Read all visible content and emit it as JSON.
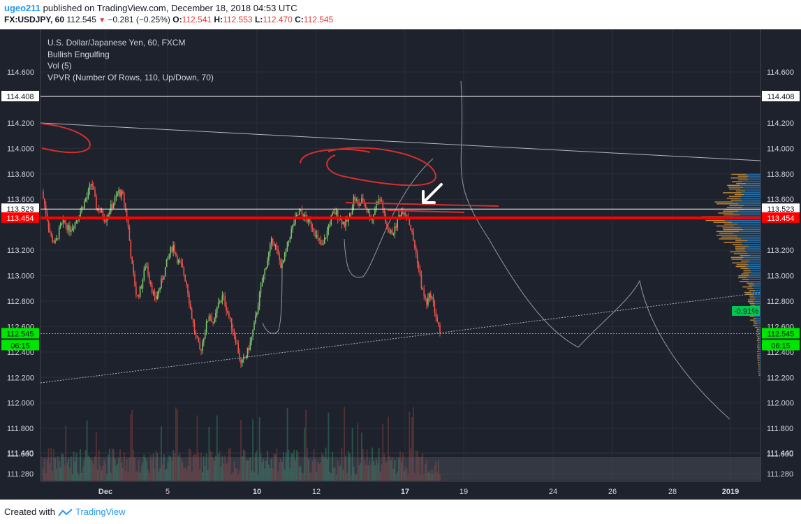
{
  "header": {
    "username": "ugeo211",
    "published_text": "published on TradingView.com, December 18, 2018 04:53 UTC"
  },
  "ohlc_line": {
    "symbol": "FX:USDJPY, 60",
    "last": "112.545",
    "change": "−0.281 (−0.25%)",
    "o_label": "O:",
    "o_value": "112.541",
    "h_label": "H:",
    "h_value": "112.553",
    "l_label": "L:",
    "l_value": "112.470",
    "c_label": "C:",
    "c_value": "112.545"
  },
  "legend": {
    "title": "U.S. Dollar/Japanese Yen, 60, FXCM",
    "line2": "Bullish Engulfing",
    "line3": "Vol (5)",
    "line4": "VPVR (Number Of Rows, 110, Up/Down, 70)"
  },
  "price_axis": {
    "ticks": [
      "114.600",
      "114.200",
      "114.000",
      "113.800",
      "113.600",
      "113.200",
      "113.000",
      "112.800",
      "112.600",
      "112.400",
      "112.200",
      "112.000",
      "111.800",
      "111.600",
      "111.440",
      "111.280"
    ],
    "labels": [
      {
        "text": "114.408",
        "price": 114.408,
        "kind": "white"
      },
      {
        "text": "113.523",
        "price": 113.523,
        "kind": "white"
      },
      {
        "text": "113.454",
        "price": 113.454,
        "kind": "red"
      },
      {
        "text": "112.545",
        "price": 112.545,
        "kind": "green"
      },
      {
        "text": "06:15",
        "price": 112.44,
        "kind": "green"
      }
    ],
    "change_badge": "-0.91%"
  },
  "time_axis": {
    "ticks": [
      {
        "label": "Dec",
        "bold": true
      },
      {
        "label": "5",
        "bold": false
      },
      {
        "label": "10",
        "bold": true
      },
      {
        "label": "12",
        "bold": false
      },
      {
        "label": "17",
        "bold": true
      },
      {
        "label": "19",
        "bold": false
      },
      {
        "label": "24",
        "bold": false
      },
      {
        "label": "26",
        "bold": false
      },
      {
        "label": "28",
        "bold": false
      },
      {
        "label": "2019",
        "bold": true
      }
    ]
  },
  "chart_data": {
    "type": "candlestick",
    "title": "U.S. Dollar/Japanese Yen, 60, FXCM",
    "ylim": [
      111.2,
      114.75
    ],
    "close_path": [
      113.66,
      113.48,
      113.3,
      113.25,
      113.38,
      113.42,
      113.36,
      113.4,
      113.46,
      113.55,
      113.62,
      113.74,
      113.54,
      113.5,
      113.44,
      113.52,
      113.58,
      113.66,
      113.62,
      113.4,
      113.05,
      112.82,
      112.92,
      113.1,
      112.95,
      112.8,
      112.9,
      113.02,
      113.16,
      113.24,
      113.12,
      113.06,
      112.94,
      112.7,
      112.52,
      112.4,
      112.56,
      112.7,
      112.62,
      112.78,
      112.84,
      112.72,
      112.6,
      112.48,
      112.3,
      112.36,
      112.46,
      112.62,
      112.82,
      113.0,
      113.15,
      113.3,
      113.18,
      113.06,
      113.2,
      113.34,
      113.44,
      113.5,
      113.46,
      113.42,
      113.38,
      113.28,
      113.22,
      113.34,
      113.46,
      113.5,
      113.44,
      113.4,
      113.46,
      113.62,
      113.55,
      113.6,
      113.5,
      113.44,
      113.58,
      113.6,
      113.4,
      113.33,
      113.36,
      113.48,
      113.52,
      113.45,
      113.3,
      113.12,
      112.9,
      112.78,
      112.86,
      112.7,
      112.545
    ],
    "series": [
      {
        "name": "USDJPY"
      }
    ],
    "horizontal_levels": [
      114.408,
      113.523,
      113.454
    ],
    "current_price": 112.545
  },
  "footer": {
    "created_with": "Created with",
    "brand": "TradingView"
  },
  "colors": {
    "background": "#1e222d",
    "up": "#7cc26c",
    "down": "#f0524b",
    "level_red": "#ff0000",
    "price_green": "#00e676",
    "axis_text": "#d1d4dc",
    "tv_blue": "#2196f3",
    "vp_up": "#2a7fc1",
    "vp_down": "#e0a040"
  }
}
